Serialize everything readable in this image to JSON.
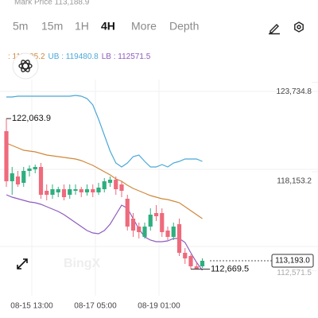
{
  "header": {
    "mark_price": "Mark Price 113,188.9"
  },
  "tabs": [
    "5m",
    "15m",
    "1H",
    "4H",
    "More",
    "Depth"
  ],
  "active_tab": 3,
  "chart_data": {
    "type": "candlestick",
    "legend": [
      ": 115805.2",
      "UB : 119480.8",
      "LB : 112571.5"
    ],
    "up_color": "#2fae7f",
    "down_color": "#ee6a7c",
    "ylim": [
      111110,
      124502
    ],
    "yticks": [
      {
        "value": 123734.8,
        "label": "123,734.8"
      },
      {
        "value": 118153.2,
        "label": "118,153.2"
      }
    ],
    "x_axis_labels": [
      "08-15 13:00",
      "08-17 05:00",
      "08-19 01:00"
    ],
    "high_marker": {
      "value": 122063.9,
      "label": "122,063.9"
    },
    "low_marker": {
      "value": 112669.5,
      "label": "112,669.5"
    },
    "lb_marker": {
      "value": 112571.5,
      "label": "112,571.5"
    },
    "current_price": {
      "value": 113193.0,
      "label": "113,193.0"
    },
    "candles": [
      {
        "open": 121278,
        "high": 122063.9,
        "low": 117806,
        "close": 118153
      },
      {
        "open": 118153,
        "high": 119046,
        "low": 117310,
        "close": 118649
      },
      {
        "open": 118451,
        "high": 118798,
        "low": 117806,
        "close": 117955
      },
      {
        "open": 118054,
        "high": 119046,
        "low": 117806,
        "close": 118798
      },
      {
        "open": 118798,
        "high": 119145,
        "low": 118451,
        "close": 118947
      },
      {
        "open": 118897,
        "high": 119195,
        "low": 118649,
        "close": 119046
      },
      {
        "open": 119046,
        "high": 119294,
        "low": 117062,
        "close": 117310
      },
      {
        "open": 117558,
        "high": 117955,
        "low": 116963,
        "close": 117310
      },
      {
        "open": 117310,
        "high": 117955,
        "low": 117062,
        "close": 117657
      },
      {
        "open": 117459,
        "high": 117806,
        "low": 117161,
        "close": 117657
      },
      {
        "open": 117657,
        "high": 117955,
        "low": 116963,
        "close": 117161
      },
      {
        "open": 117310,
        "high": 117955,
        "low": 117062,
        "close": 117657
      },
      {
        "open": 117558,
        "high": 117955,
        "low": 117310,
        "close": 117657
      },
      {
        "open": 117657,
        "high": 117806,
        "low": 117161,
        "close": 117459
      },
      {
        "open": 117459,
        "high": 117955,
        "low": 117260,
        "close": 117657
      },
      {
        "open": 117657,
        "high": 117955,
        "low": 117161,
        "close": 117459
      },
      {
        "open": 117459,
        "high": 118054,
        "low": 117310,
        "close": 117756
      },
      {
        "open": 117657,
        "high": 118352,
        "low": 117459,
        "close": 118153
      },
      {
        "open": 118054,
        "high": 118451,
        "low": 117806,
        "close": 118252
      },
      {
        "open": 118252,
        "high": 118451,
        "low": 117310,
        "close": 117657
      },
      {
        "open": 117955,
        "high": 118153,
        "low": 117161,
        "close": 117558
      },
      {
        "open": 117062,
        "high": 117310,
        "low": 115078,
        "close": 115326
      },
      {
        "open": 115822,
        "high": 116169,
        "low": 114681,
        "close": 115078
      },
      {
        "open": 115326,
        "high": 115574,
        "low": 114582,
        "close": 114979
      },
      {
        "open": 114681,
        "high": 115574,
        "low": 114582,
        "close": 115326
      },
      {
        "open": 115326,
        "high": 116467,
        "low": 115078,
        "close": 116070
      },
      {
        "open": 116169,
        "high": 116665,
        "low": 115673,
        "close": 115971
      },
      {
        "open": 116169,
        "high": 116467,
        "low": 114681,
        "close": 114979
      },
      {
        "open": 115078,
        "high": 115326,
        "low": 114483,
        "close": 114681
      },
      {
        "open": 114681,
        "high": 115574,
        "low": 114483,
        "close": 115326
      },
      {
        "open": 115475,
        "high": 115822,
        "low": 113491,
        "close": 113689
      },
      {
        "open": 113689,
        "high": 113987,
        "low": 112995,
        "close": 113342
      },
      {
        "open": 113491,
        "high": 113590,
        "low": 112669.5,
        "close": 112846
      },
      {
        "open": 112846,
        "high": 113094,
        "low": 112669.5,
        "close": 112697
      },
      {
        "open": 112846,
        "high": 113342,
        "low": 112747,
        "close": 113193
      }
    ],
    "series": [
      {
        "name": "MB",
        "color": "#d0883a",
        "values": [
          120534,
          120385,
          120236,
          120087,
          120038,
          119988,
          119889,
          119790,
          119740,
          119691,
          119641,
          119591,
          119542,
          119443,
          119294,
          119145,
          118947,
          118748,
          118550,
          118302,
          118153,
          117905,
          117707,
          117558,
          117409,
          117260,
          117161,
          117062,
          117012,
          116913,
          116814,
          116566,
          116318,
          116070,
          115822
        ]
      },
      {
        "name": "UB",
        "color": "#4aa8d8",
        "values": [
          123411,
          123411,
          123460,
          123460,
          123460,
          123460,
          123460,
          123460,
          123460,
          123460,
          123460,
          123460,
          123510,
          123460,
          123311,
          122915,
          122022,
          121030,
          120038,
          119294,
          119046,
          119294,
          119691,
          119790,
          119393,
          119046,
          119046,
          119195,
          119046,
          119294,
          119393,
          119542,
          119542,
          119542,
          119393
        ]
      },
      {
        "name": "LB",
        "color": "#8e5bbf",
        "values": [
          117310,
          117161,
          117062,
          116963,
          116864,
          116814,
          116715,
          116566,
          116417,
          116268,
          116070,
          115822,
          115574,
          115326,
          115078,
          114929,
          114880,
          115078,
          115475,
          116070,
          116665,
          116467,
          115822,
          115177,
          114681,
          114483,
          114384,
          114384,
          114433,
          114582,
          114582,
          114334,
          113689,
          113094,
          112598
        ]
      }
    ]
  }
}
